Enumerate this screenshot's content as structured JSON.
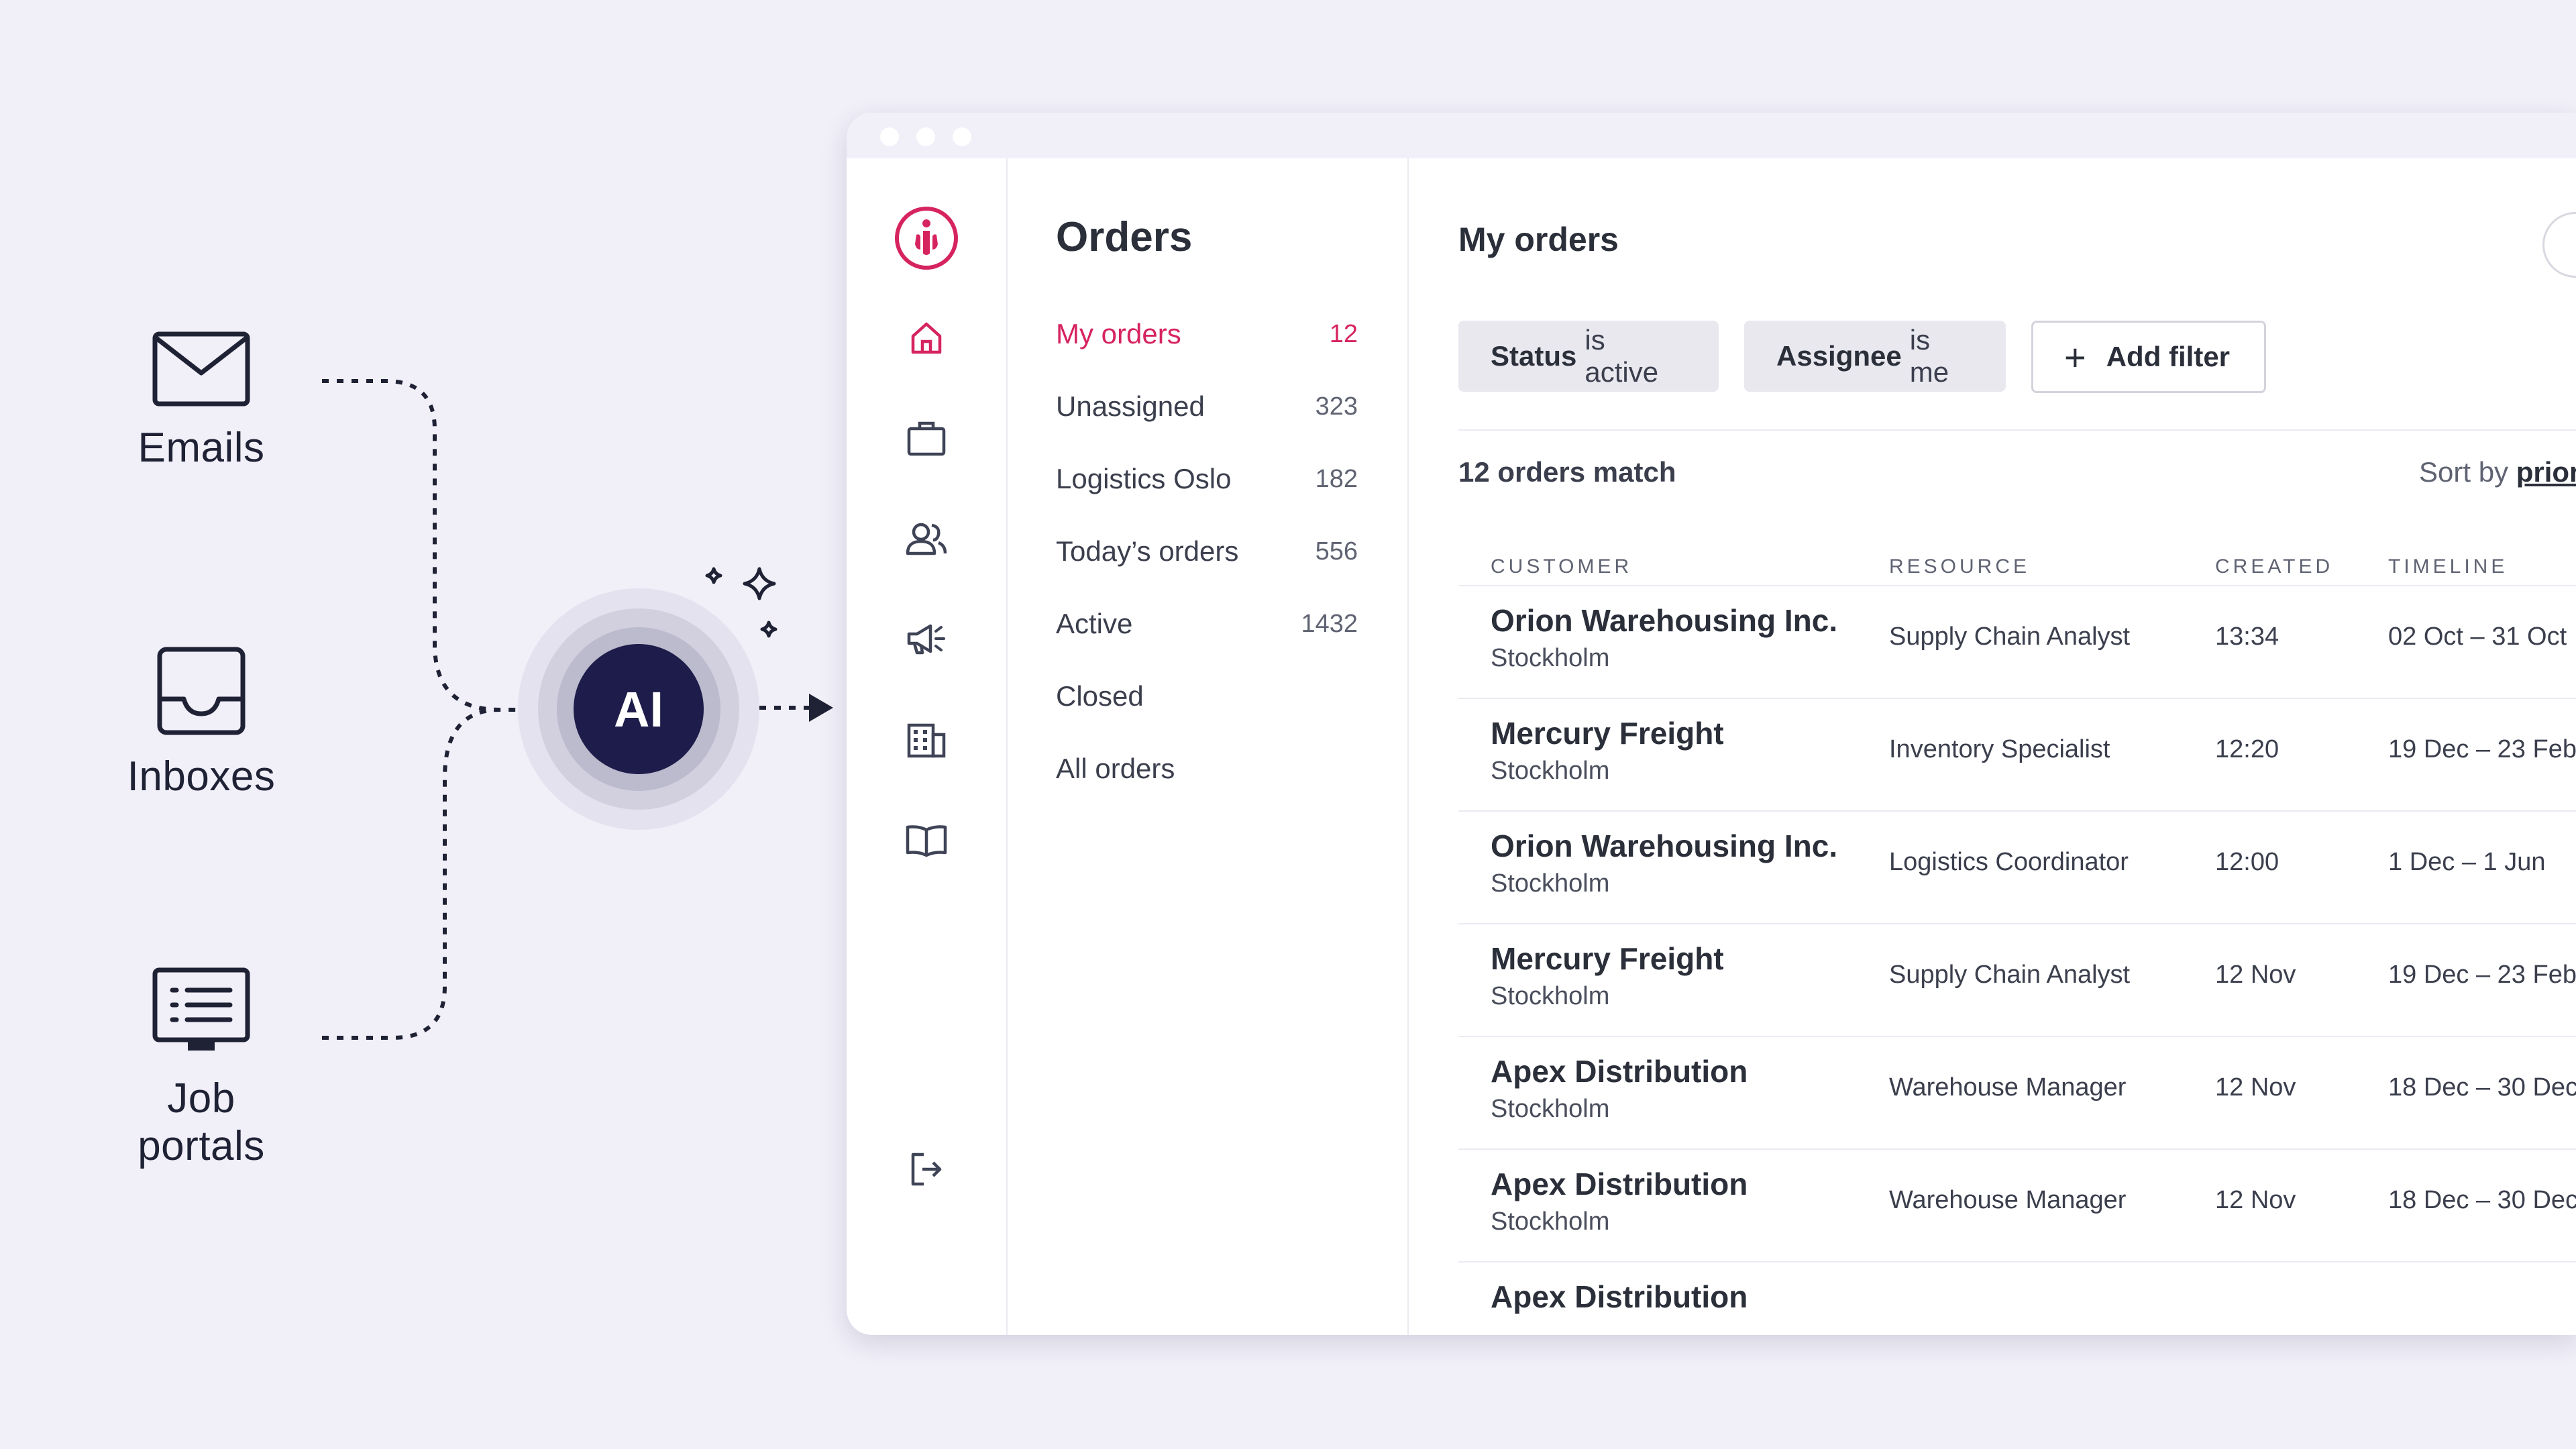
{
  "sources": {
    "emails": "Emails",
    "inboxes": "Inboxes",
    "job_portals": "Job portals"
  },
  "ai_label": "AI",
  "colors": {
    "accent": "#d6245f",
    "ai_core": "#1d1c4a",
    "background": "#f1eff8"
  },
  "rail": {
    "logo": "brand-logo-icon",
    "icons": [
      "home-icon",
      "briefcase-icon",
      "users-icon",
      "megaphone-icon",
      "building-icon",
      "book-icon"
    ],
    "logout": "logout-icon"
  },
  "nav": {
    "title": "Orders",
    "items": [
      {
        "label": "My orders",
        "count": "12"
      },
      {
        "label": "Unassigned",
        "count": "323"
      },
      {
        "label": "Logistics Oslo",
        "count": "182"
      },
      {
        "label": "Today’s orders",
        "count": "556"
      },
      {
        "label": "Active",
        "count": "1432"
      },
      {
        "label": "Closed",
        "count": ""
      },
      {
        "label": "All orders",
        "count": ""
      }
    ]
  },
  "main": {
    "title": "My orders",
    "filters": {
      "status_key": "Status",
      "status_value": "is active",
      "assignee_key": "Assignee",
      "assignee_value": "is me",
      "add_filter": "Add filter"
    },
    "match_text": "12 orders match",
    "sort_label": "Sort by",
    "sort_value": "prior",
    "columns": {
      "customer": "CUSTOMER",
      "resource": "RESOURCE",
      "created": "CREATED",
      "timeline": "TIMELINE"
    },
    "rows": [
      {
        "customer": "Orion Warehousing Inc.",
        "city": "Stockholm",
        "resource": "Supply Chain Analyst",
        "created": "13:34",
        "timeline": "02 Oct – 31 Oct"
      },
      {
        "customer": "Mercury Freight",
        "city": "Stockholm",
        "resource": "Inventory Specialist",
        "created": "12:20",
        "timeline": "19 Dec – 23 Feb"
      },
      {
        "customer": "Orion Warehousing Inc.",
        "city": "Stockholm",
        "resource": "Logistics Coordinator",
        "created": "12:00",
        "timeline": "1 Dec – 1 Jun"
      },
      {
        "customer": "Mercury Freight",
        "city": "Stockholm",
        "resource": "Supply Chain Analyst",
        "created": "12 Nov",
        "timeline": "19 Dec – 23 Feb"
      },
      {
        "customer": "Apex Distribution",
        "city": "Stockholm",
        "resource": "Warehouse Manager",
        "created": "12 Nov",
        "timeline": "18 Dec – 30 Dec"
      },
      {
        "customer": "Apex Distribution",
        "city": "Stockholm",
        "resource": "Warehouse Manager",
        "created": "12 Nov",
        "timeline": "18 Dec – 30 Dec"
      },
      {
        "customer": "Apex Distribution",
        "city": "",
        "resource": "",
        "created": "",
        "timeline": ""
      }
    ]
  }
}
